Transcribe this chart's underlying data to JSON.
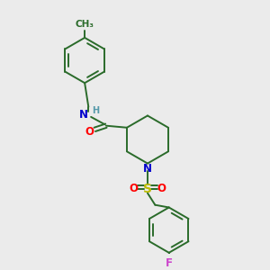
{
  "bg_color": "#ebebeb",
  "bond_color": "#2a6b2a",
  "atom_colors": {
    "N": "#0000cc",
    "H": "#5599aa",
    "O": "#ff0000",
    "S": "#bbbb00",
    "F": "#cc44cc",
    "C": "#2a6b2a"
  },
  "line_width": 1.4,
  "font_size": 8.5,
  "figsize": [
    3.0,
    3.0
  ],
  "dpi": 100
}
